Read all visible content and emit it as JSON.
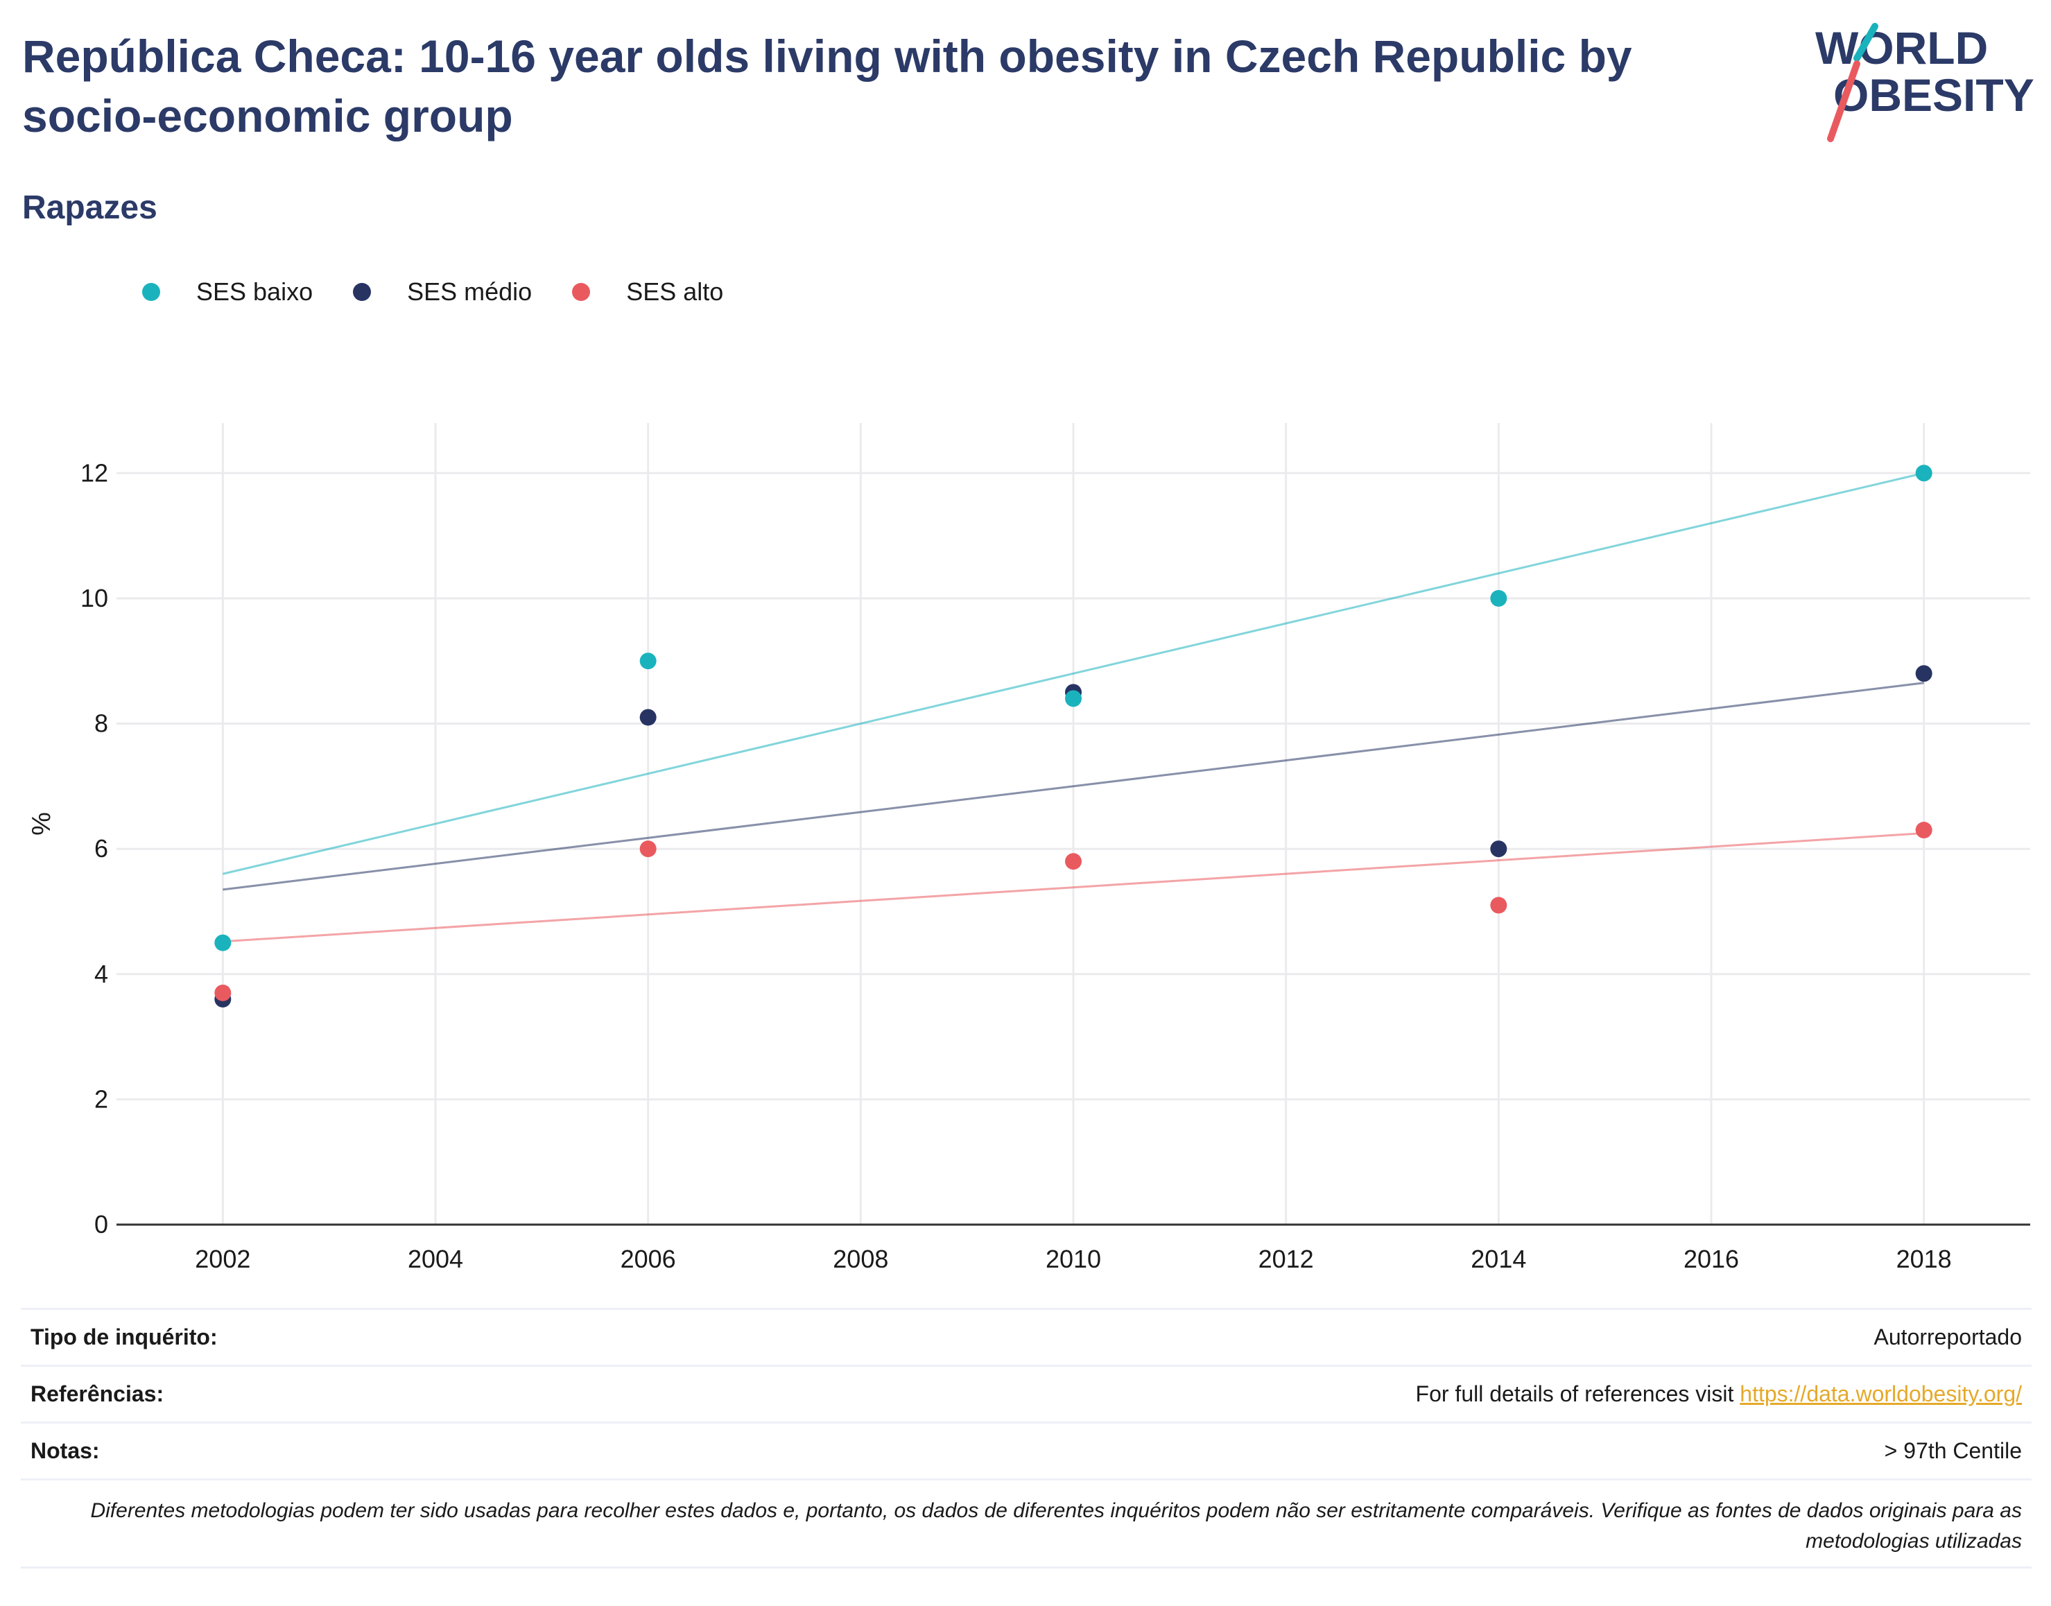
{
  "header": {
    "title": "República Checa: 10-16 year olds living with obesity in Czech Republic by socio-economic group",
    "subtitle": "Rapazes",
    "logo_line1": "WORLD",
    "logo_line2": "OBESITY"
  },
  "colors": {
    "ses_baixo": "#1ab3bd",
    "ses_medio": "#273462",
    "ses_alto": "#e95a5f",
    "title": "#2b3a67"
  },
  "chart_data": {
    "type": "scatter",
    "ylabel": "%",
    "xlim": [
      2001,
      2019
    ],
    "ylim": [
      0,
      12.8
    ],
    "x_ticks": [
      2002,
      2004,
      2006,
      2008,
      2010,
      2012,
      2014,
      2016,
      2018
    ],
    "y_ticks": [
      0,
      2,
      4,
      6,
      8,
      10,
      12
    ],
    "grid": true,
    "legend_position": "top-left",
    "x": [
      2002,
      2006,
      2010,
      2014,
      2018
    ],
    "series": [
      {
        "name": "SES baixo",
        "values": [
          4.5,
          9.0,
          8.4,
          10.0,
          12.0
        ],
        "trend": [
          5.6,
          12.0
        ]
      },
      {
        "name": "SES médio",
        "values": [
          3.6,
          8.1,
          8.5,
          6.0,
          8.8
        ],
        "trend": [
          5.35,
          8.65
        ]
      },
      {
        "name": "SES alto",
        "values": [
          3.7,
          6.0,
          5.8,
          5.1,
          6.3
        ],
        "trend": [
          4.52,
          6.25
        ]
      }
    ]
  },
  "info": {
    "survey_label": "Tipo de inquérito:",
    "survey_value": "Autorreportado",
    "refs_label": "Referências:",
    "refs_text": "For full details of references visit ",
    "refs_link": "https://data.worldobesity.org/",
    "notes_label": "Notas:",
    "notes_value": "> 97th Centile",
    "disclaimer": "Diferentes metodologias podem ter sido usadas para recolher estes dados e, portanto, os dados de diferentes inquéritos podem não ser estritamente comparáveis. Verifique as fontes de dados originais para as metodologias utilizadas"
  }
}
